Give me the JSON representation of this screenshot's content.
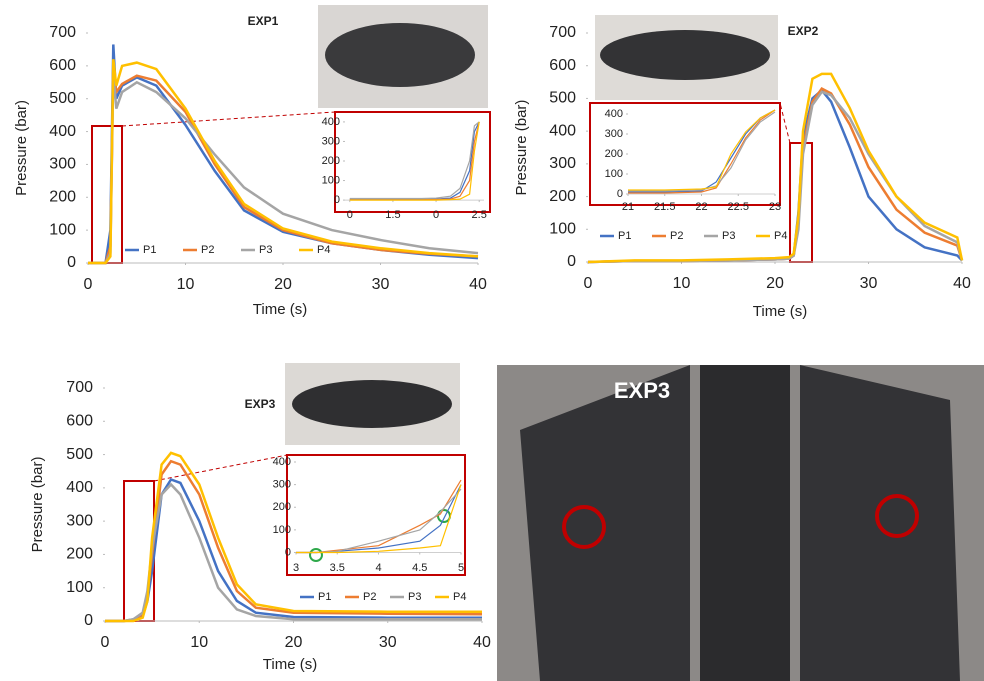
{
  "chart_data": [
    {
      "type": "line",
      "title": "EXP1",
      "x_label": "Time (s)",
      "y_label": "Pressure (bar)",
      "xlim": [
        0,
        40
      ],
      "ylim": [
        0,
        700
      ],
      "xticks": [
        0,
        10,
        20,
        30,
        40
      ],
      "yticks": [
        0,
        100,
        200,
        300,
        400,
        500,
        600,
        700
      ],
      "x": [
        0,
        1.8,
        2.3,
        2.6,
        2.9,
        3.5,
        5,
        7,
        10,
        13,
        16,
        20,
        25,
        30,
        35,
        40
      ],
      "series": [
        {
          "name": "P1",
          "color": "#4472c4",
          "values": [
            0,
            0,
            100,
            665,
            500,
            540,
            565,
            540,
            420,
            280,
            160,
            95,
            60,
            40,
            25,
            15
          ]
        },
        {
          "name": "P2",
          "color": "#ed7d31",
          "values": [
            0,
            0,
            50,
            600,
            520,
            545,
            570,
            555,
            460,
            300,
            170,
            100,
            60,
            40,
            28,
            20
          ]
        },
        {
          "name": "P3",
          "color": "#a5a5a5",
          "values": [
            0,
            0,
            30,
            580,
            470,
            520,
            550,
            520,
            440,
            330,
            230,
            150,
            100,
            70,
            45,
            30
          ]
        },
        {
          "name": "P4",
          "color": "#ffc000",
          "values": [
            0,
            0,
            20,
            620,
            540,
            600,
            610,
            590,
            470,
            310,
            180,
            105,
            65,
            45,
            30,
            20
          ]
        }
      ]
    },
    {
      "type": "line",
      "xlim": [
        -0.1,
        2.8
      ],
      "ylim": [
        -20,
        420
      ],
      "xticks": [
        0,
        {
          "value": 0.9,
          "label": "1.5"
        },
        {
          "value": 1.8,
          "label": "0"
        },
        {
          "value": 2.7,
          "label": "2.5"
        }
      ],
      "yticks": [
        0,
        100,
        200,
        300,
        400
      ],
      "x": [
        0,
        0.5,
        1,
        1.5,
        1.8,
        2.1,
        2.3,
        2.5,
        2.6,
        2.7
      ],
      "series": [
        {
          "color": "#4472c4",
          "values": [
            5,
            5,
            5,
            5,
            5,
            10,
            40,
            150,
            350,
            400
          ]
        },
        {
          "color": "#ed7d31",
          "values": [
            2,
            2,
            2,
            2,
            3,
            5,
            20,
            100,
            300,
            400
          ]
        },
        {
          "color": "#a5a5a5",
          "values": [
            8,
            8,
            8,
            8,
            10,
            20,
            60,
            200,
            380,
            400
          ]
        },
        {
          "color": "#ffc000",
          "values": [
            0,
            0,
            0,
            0,
            0,
            2,
            5,
            30,
            250,
            400
          ]
        }
      ]
    },
    {
      "type": "line",
      "title": "EXP2",
      "x_label": "Time (s)",
      "y_label": "Pressure (bar)",
      "xlim": [
        0,
        40
      ],
      "ylim": [
        0,
        700
      ],
      "xticks": [
        0,
        10,
        20,
        30,
        40
      ],
      "yticks": [
        0,
        100,
        200,
        300,
        400,
        500,
        600,
        700
      ],
      "x": [
        0,
        5,
        10,
        15,
        20,
        21.5,
        22,
        22.5,
        23,
        24,
        25,
        26,
        28,
        30,
        33,
        36,
        39.5,
        40
      ],
      "series": [
        {
          "name": "P1",
          "color": "#4472c4",
          "values": [
            0,
            3,
            3,
            5,
            8,
            10,
            20,
            150,
            380,
            500,
            525,
            490,
            350,
            200,
            100,
            45,
            20,
            5
          ]
        },
        {
          "name": "P2",
          "color": "#ed7d31",
          "values": [
            0,
            3,
            3,
            5,
            8,
            10,
            20,
            120,
            350,
            490,
            530,
            515,
            420,
            290,
            160,
            90,
            50,
            5
          ]
        },
        {
          "name": "P3",
          "color": "#a5a5a5",
          "values": [
            0,
            3,
            3,
            5,
            8,
            10,
            20,
            100,
            330,
            480,
            520,
            510,
            440,
            330,
            200,
            110,
            60,
            5
          ]
        },
        {
          "name": "P4",
          "color": "#ffc000",
          "values": [
            0,
            5,
            5,
            8,
            12,
            15,
            25,
            140,
            400,
            560,
            575,
            575,
            470,
            340,
            200,
            120,
            75,
            5
          ]
        }
      ]
    },
    {
      "type": "line",
      "xlim": [
        21,
        23
      ],
      "ylim": [
        -10,
        420
      ],
      "xticks": [
        21,
        21.5,
        22,
        22.5,
        23
      ],
      "yticks": [
        0,
        100,
        200,
        300,
        400
      ],
      "x": [
        21,
        21.5,
        22,
        22.2,
        22.4,
        22.6,
        22.8,
        23
      ],
      "series": [
        {
          "color": "#4472c4",
          "values": [
            10,
            10,
            15,
            60,
            180,
            300,
            380,
            420
          ]
        },
        {
          "color": "#ed7d31",
          "values": [
            5,
            5,
            10,
            30,
            150,
            280,
            370,
            420
          ]
        },
        {
          "color": "#a5a5a5",
          "values": [
            15,
            15,
            20,
            40,
            130,
            270,
            360,
            410
          ]
        },
        {
          "color": "#ffc000",
          "values": [
            20,
            20,
            25,
            35,
            200,
            310,
            380,
            420
          ]
        }
      ]
    },
    {
      "type": "line",
      "title": "EXP3",
      "x_label": "Time (s)",
      "y_label": "Pressure (bar)",
      "xlim": [
        0,
        40
      ],
      "ylim": [
        0,
        700
      ],
      "xticks": [
        0,
        10,
        20,
        30,
        40
      ],
      "yticks": [
        0,
        100,
        200,
        300,
        400,
        500,
        600,
        700
      ],
      "x": [
        0,
        2,
        3,
        4,
        4.5,
        5,
        6,
        7,
        8,
        10,
        12,
        14,
        16,
        20,
        30,
        40
      ],
      "series": [
        {
          "name": "P1",
          "color": "#4472c4",
          "values": [
            0,
            0,
            5,
            15,
            60,
            150,
            380,
            425,
            415,
            300,
            150,
            60,
            25,
            12,
            10,
            10
          ]
        },
        {
          "name": "P2",
          "color": "#ed7d31",
          "values": [
            0,
            0,
            3,
            20,
            80,
            200,
            440,
            480,
            470,
            380,
            220,
            90,
            40,
            25,
            22,
            20
          ]
        },
        {
          "name": "P3",
          "color": "#a5a5a5",
          "values": [
            0,
            0,
            5,
            25,
            90,
            220,
            380,
            410,
            380,
            250,
            100,
            35,
            15,
            5,
            5,
            5
          ]
        },
        {
          "name": "P4",
          "color": "#ffc000",
          "values": [
            0,
            0,
            0,
            10,
            60,
            250,
            470,
            505,
            495,
            410,
            250,
            110,
            50,
            30,
            28,
            28
          ]
        }
      ]
    },
    {
      "type": "line",
      "xlim": [
        3,
        5
      ],
      "ylim": [
        -20,
        400
      ],
      "xticks": [
        3,
        3.5,
        4,
        4.5,
        5
      ],
      "yticks": [
        0,
        100,
        200,
        300,
        400
      ],
      "x": [
        3,
        3.25,
        3.5,
        4,
        4.5,
        4.75,
        5
      ],
      "series": [
        {
          "color": "#4472c4",
          "values": [
            0,
            0,
            5,
            20,
            50,
            120,
            300
          ]
        },
        {
          "color": "#ed7d31",
          "values": [
            0,
            0,
            10,
            30,
            120,
            170,
            320
          ]
        },
        {
          "color": "#a5a5a5",
          "values": [
            0,
            0,
            5,
            50,
            100,
            180,
            280
          ]
        },
        {
          "color": "#ffc000",
          "values": [
            0,
            0,
            0,
            5,
            20,
            30,
            300
          ]
        }
      ]
    }
  ],
  "photo": {
    "label": "EXP3"
  }
}
